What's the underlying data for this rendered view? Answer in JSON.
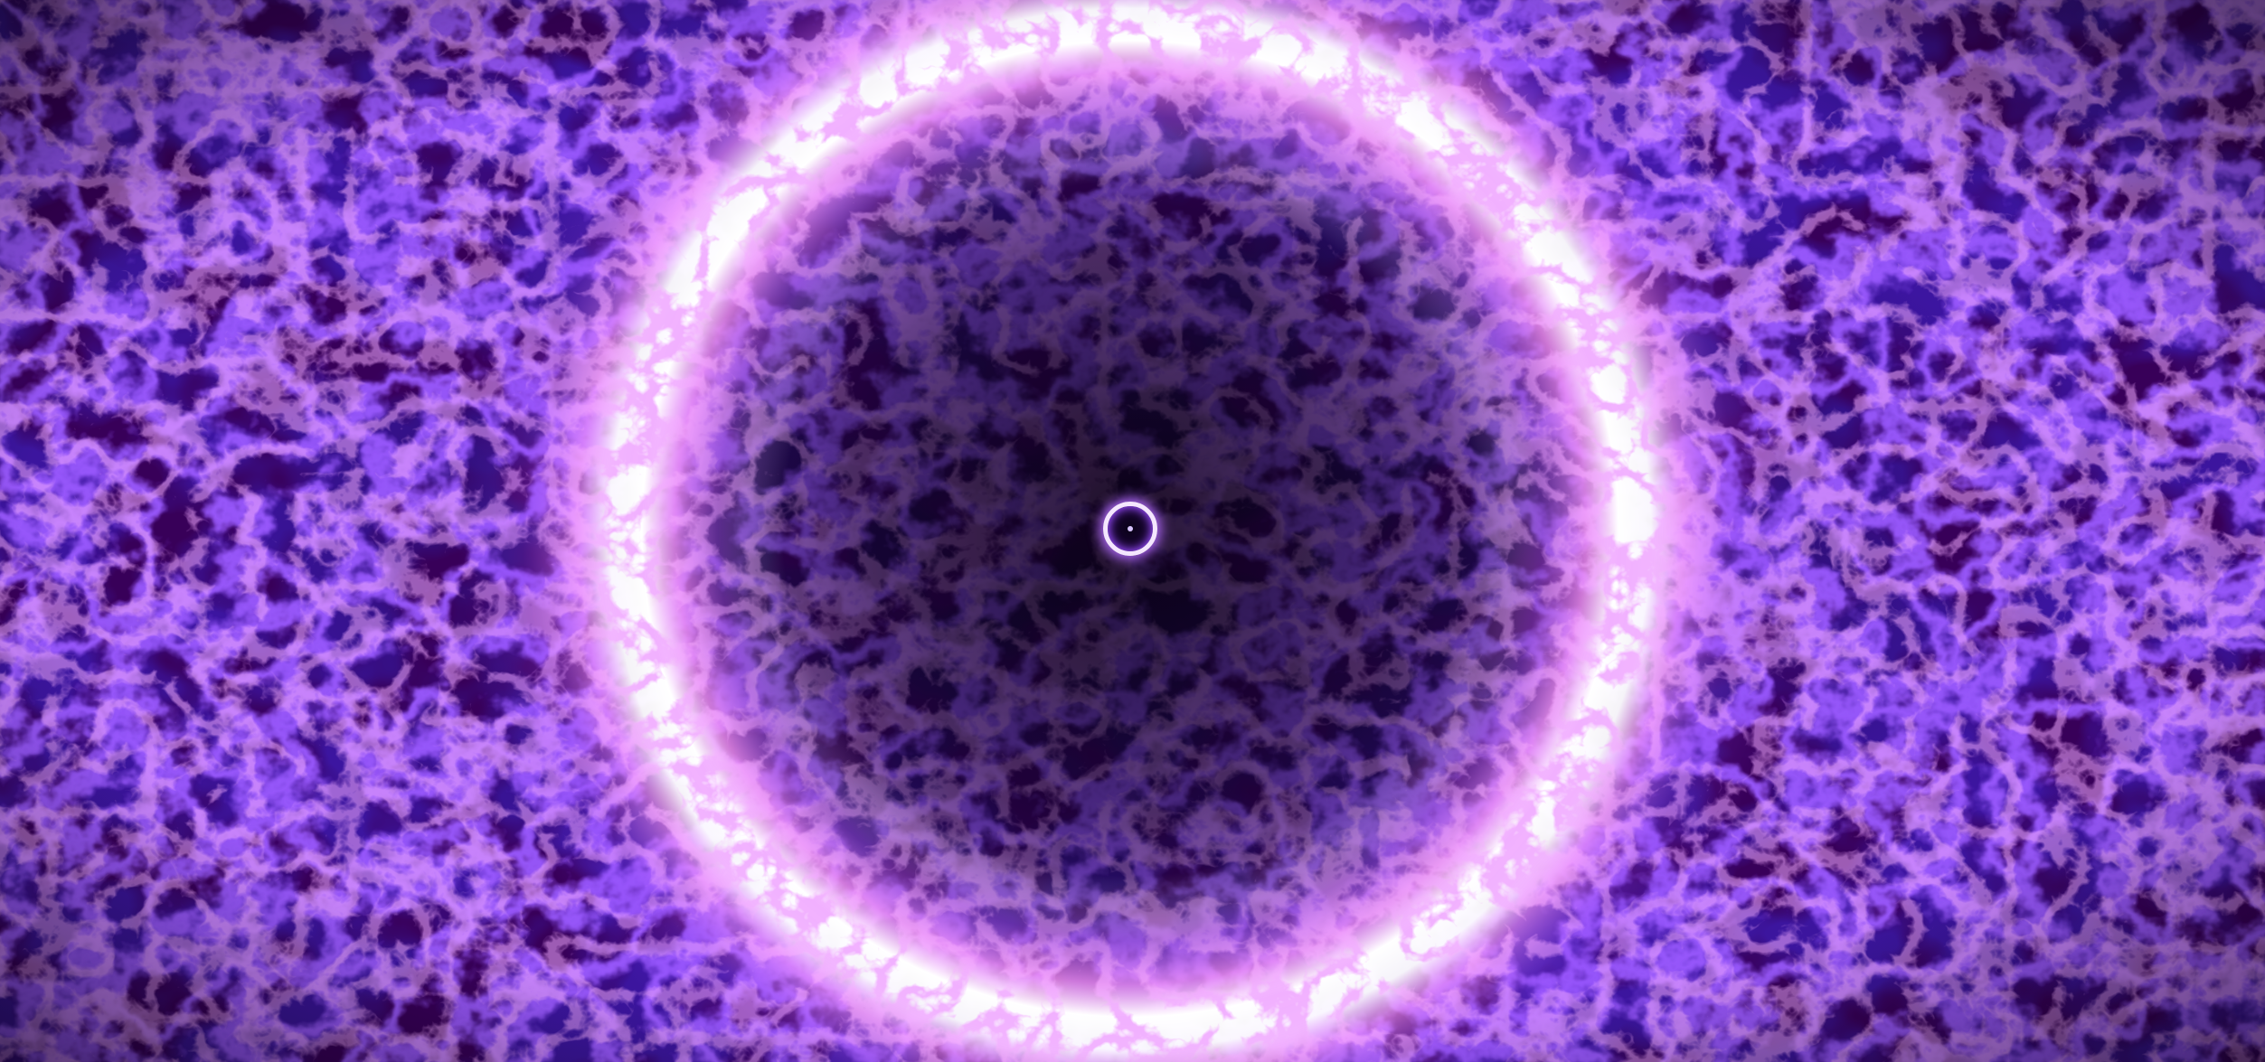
{
  "scene": {
    "palette": {
      "deep": "#0a0118",
      "dark_violet": "#22085a",
      "violet": "#5a24d6",
      "bright_violet": "#8a4dff",
      "magenta_glow": "#e07bff",
      "hot_white": "#fff6ff"
    }
  }
}
